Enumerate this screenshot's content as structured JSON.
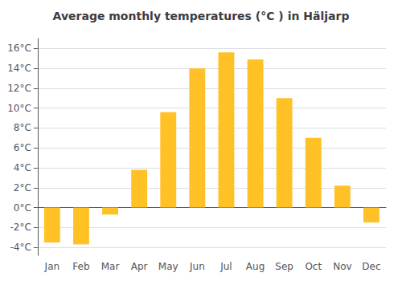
{
  "chart_data": {
    "type": "bar",
    "title": "Average monthly temperatures (°C ) in Häljarp",
    "categories": [
      "Jan",
      "Feb",
      "Mar",
      "Apr",
      "May",
      "Jun",
      "Jul",
      "Aug",
      "Sep",
      "Oct",
      "Nov",
      "Dec"
    ],
    "values": [
      -3.5,
      -3.7,
      -0.7,
      3.8,
      9.6,
      14.0,
      15.6,
      14.9,
      11.0,
      7.0,
      2.2,
      -1.5
    ],
    "color": "#FFC125",
    "ylim": [
      -4.8,
      17.0
    ],
    "yticks": [
      {
        "value": -4,
        "label": "-4°C"
      },
      {
        "value": -2,
        "label": "-2°C"
      },
      {
        "value": 0,
        "label": "0°C"
      },
      {
        "value": 2,
        "label": "2°C"
      },
      {
        "value": 4,
        "label": "4°C"
      },
      {
        "value": 6,
        "label": "6°C"
      },
      {
        "value": 8,
        "label": "8°C"
      },
      {
        "value": 10,
        "label": "10°C"
      },
      {
        "value": 12,
        "label": "12°C"
      },
      {
        "value": 14,
        "label": "14°C"
      },
      {
        "value": 16,
        "label": "16°C"
      }
    ],
    "grid": true
  }
}
